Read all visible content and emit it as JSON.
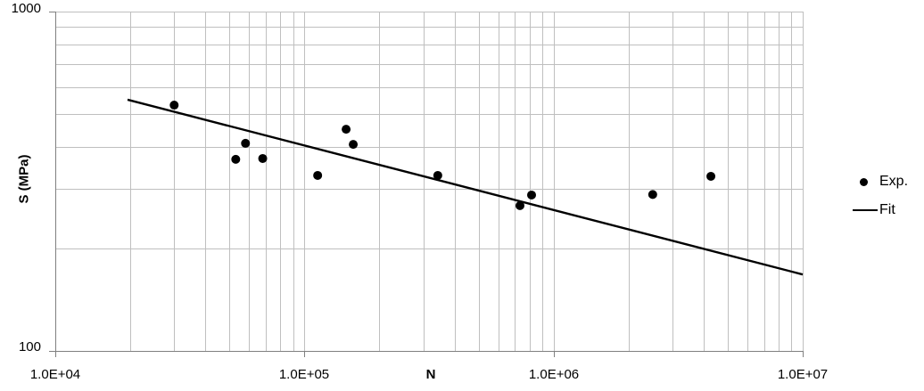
{
  "chart_data": {
    "type": "scatter",
    "title": "",
    "xlabel": "N",
    "ylabel": "S (MPa)",
    "x_scale": "log",
    "y_scale": "log",
    "xlim": [
      10000,
      10000000
    ],
    "ylim": [
      100,
      1000
    ],
    "x_tick_values": [
      10000,
      100000,
      1000000,
      10000000
    ],
    "x_tick_labels": [
      "1.0E+04",
      "1.0E+05",
      "1.0E+06",
      "1.0E+07"
    ],
    "y_tick_values": [
      100,
      1000
    ],
    "y_tick_labels": [
      "100",
      "1000"
    ],
    "grid": "major and minor logarithmic gridlines on both axes",
    "legend_position": "right-middle",
    "series": [
      {
        "name": "Exp.",
        "type": "scatter",
        "marker": "filled-circle",
        "color": "#000000",
        "N": [
          30000,
          53000,
          58000,
          68000,
          113000,
          147000,
          157000,
          343000,
          733000,
          816000,
          2500000,
          4280000
        ],
        "S": [
          530,
          367,
          409,
          369,
          329,
          450,
          406,
          329,
          268,
          288,
          289,
          327
        ]
      },
      {
        "name": "Fit",
        "type": "line",
        "color": "#000000",
        "N": [
          19500,
          10000000
        ],
        "S": [
          550,
          168
        ]
      }
    ],
    "legend": [
      {
        "label": "Exp.",
        "marker": "dot"
      },
      {
        "label": "Fit",
        "marker": "line"
      }
    ]
  },
  "colors": {
    "background": "#FFFFFF",
    "gridline": "#BFBFBF",
    "axis": "#808080",
    "series": "#000000",
    "text": "#000000"
  }
}
